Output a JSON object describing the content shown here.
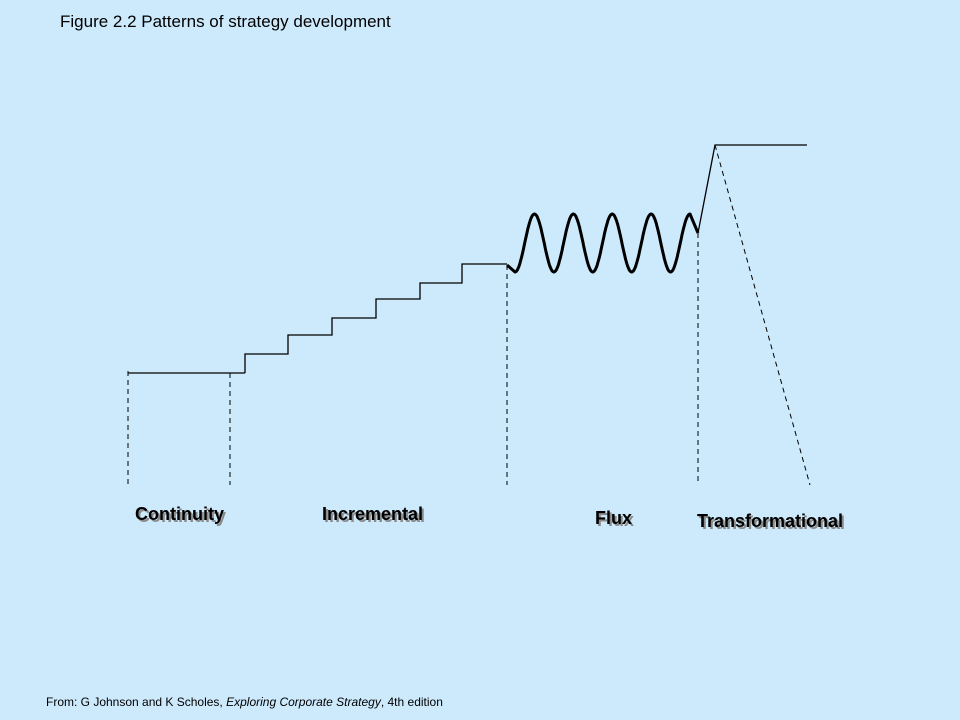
{
  "title": "Figure 2.2  Patterns of strategy development",
  "labels": {
    "continuity": "Continuity",
    "incremental": "Incremental",
    "flux": "Flux",
    "transformational": "Transformational"
  },
  "source": {
    "prefix": "From: G Johnson and K Scholes, ",
    "book": "Exploring Corporate Strategy",
    "suffix": ", 4th edition"
  },
  "colors": {
    "background": "#cdeafd",
    "line": "#000000",
    "shadow": "#8a8a8a"
  }
}
